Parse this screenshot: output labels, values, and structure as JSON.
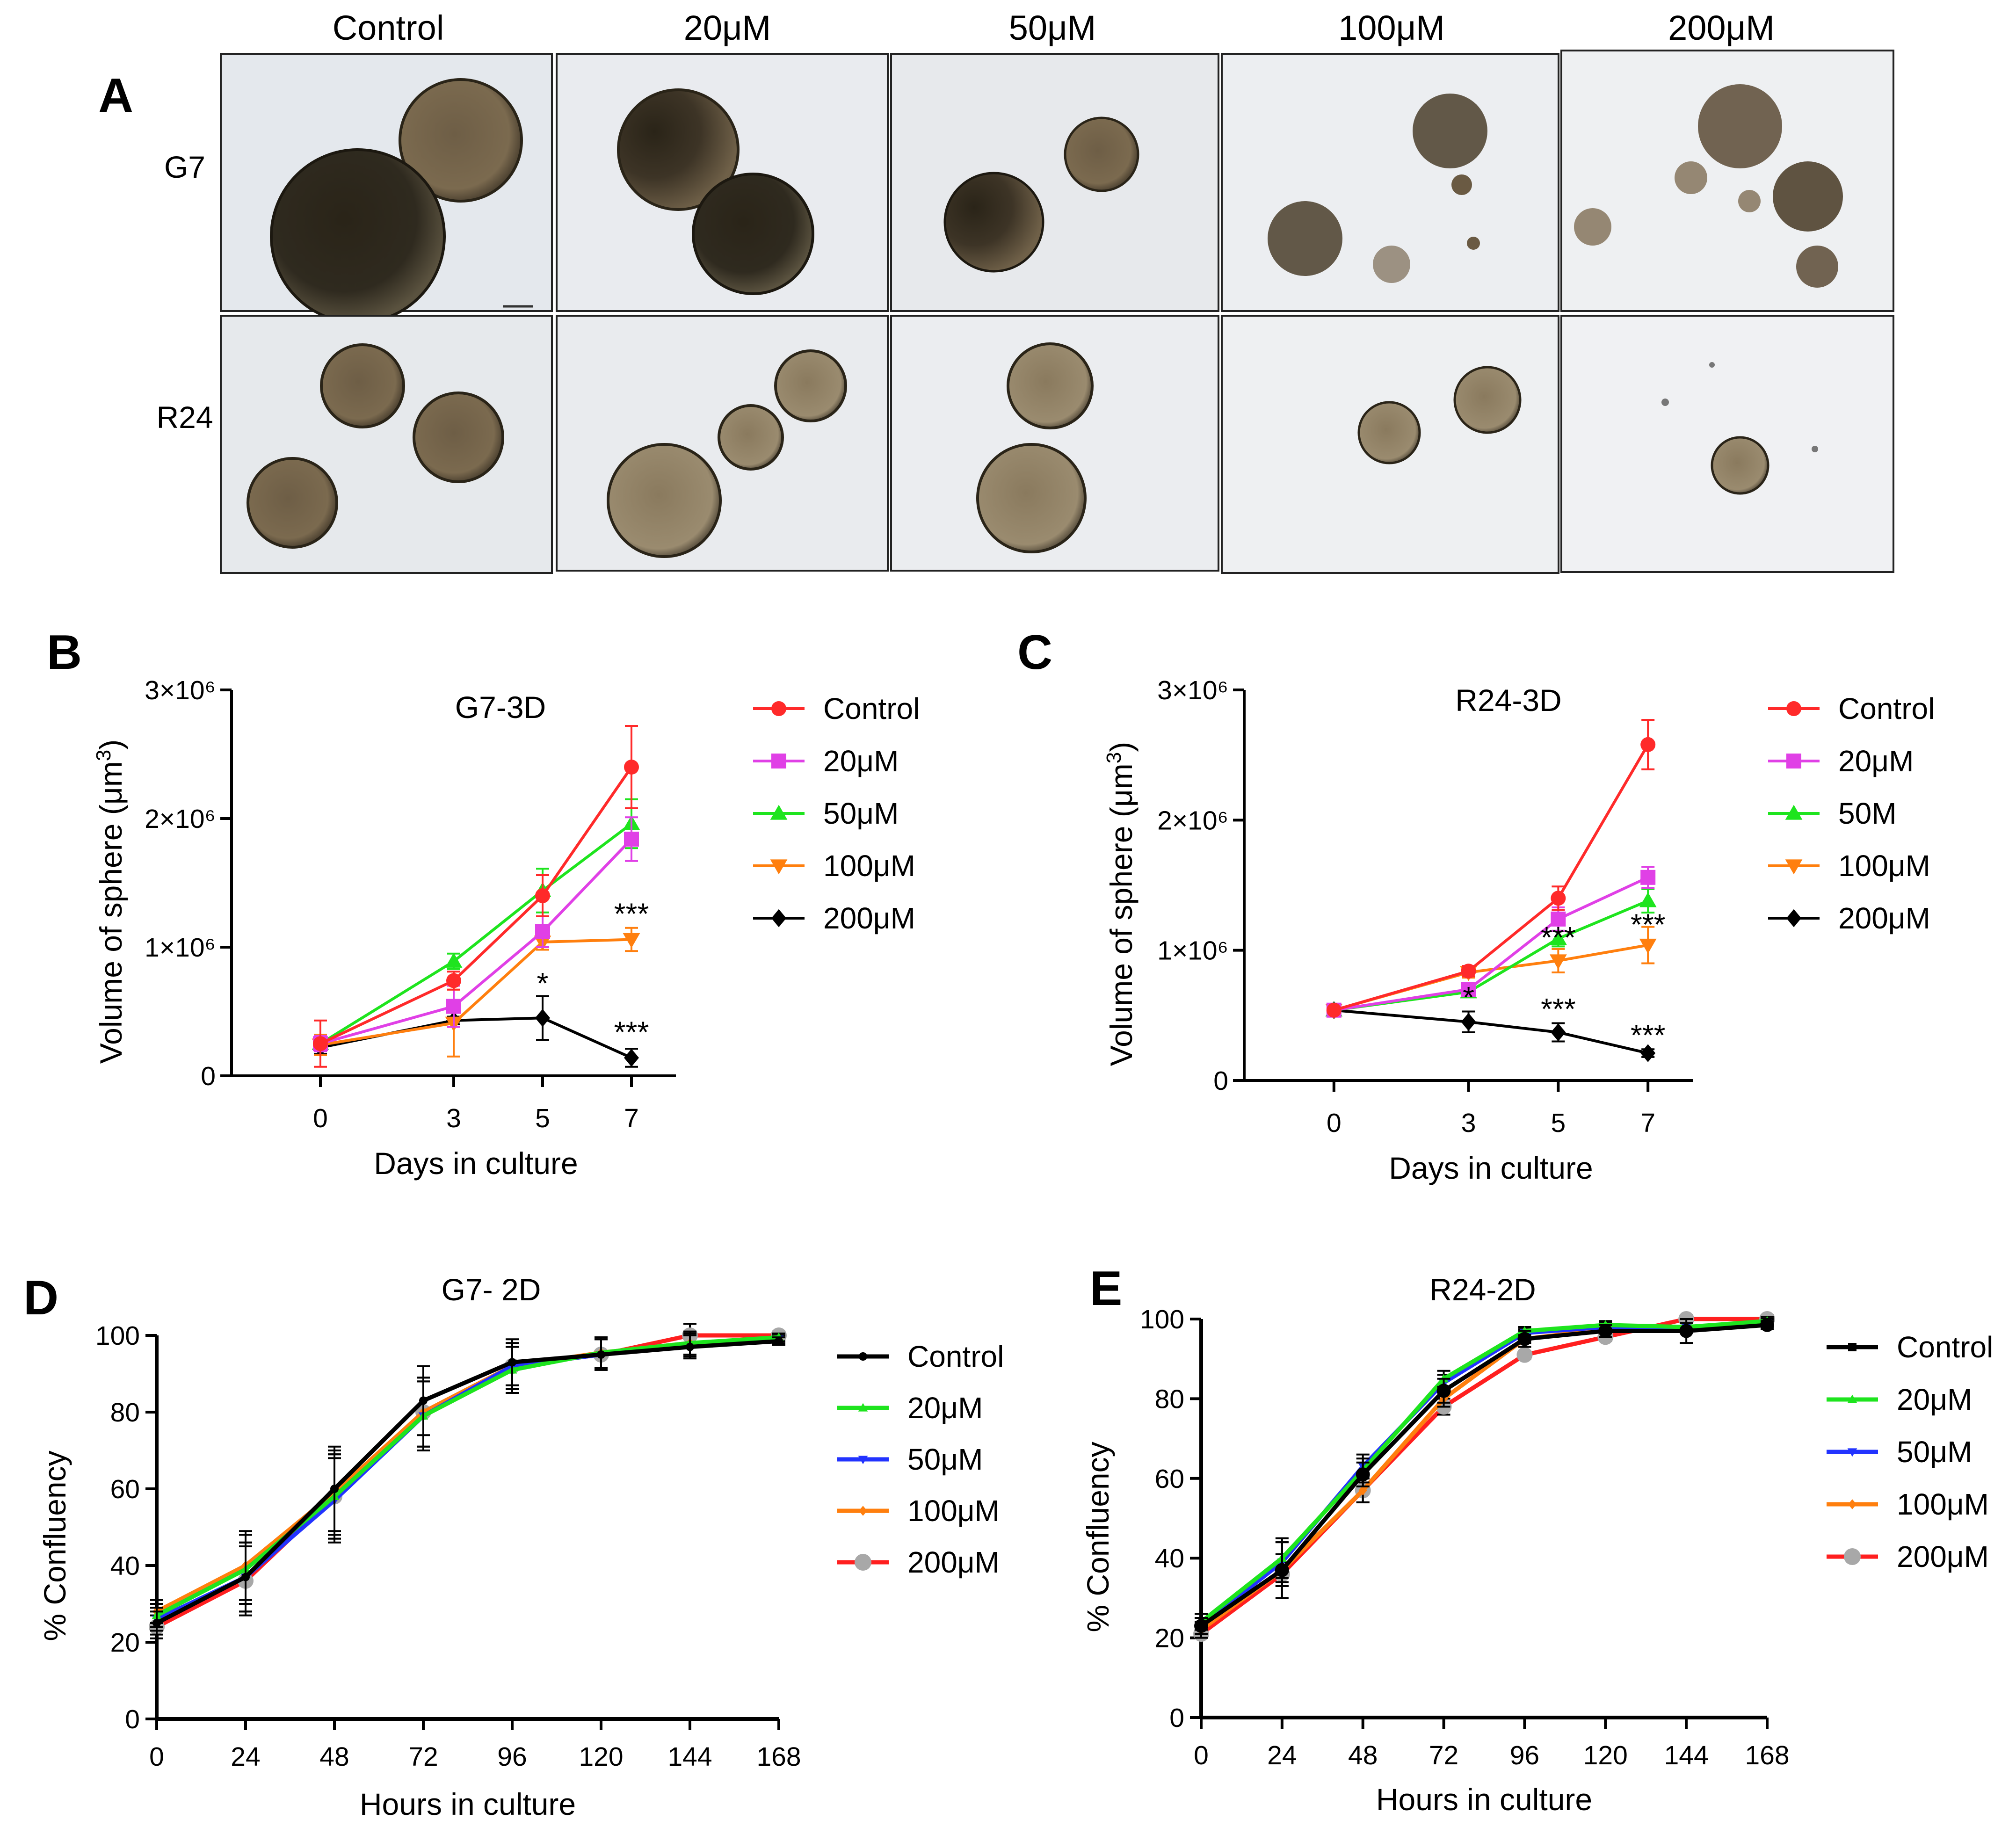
{
  "panel_a": {
    "letter": "A",
    "columns": [
      "Control",
      "20μM",
      "50μM",
      "100μM",
      "200μM"
    ],
    "rows": [
      "G7",
      "R24"
    ]
  },
  "chart_data": [
    {
      "letter": "B",
      "type": "line",
      "title": "G7-3D",
      "xlabel": "Days in culture",
      "ylabel": "Volume of sphere (μm3)",
      "y_tick_labels": [
        "0",
        "1×10⁶",
        "2×10⁶",
        "3×10⁶"
      ],
      "x": [
        0,
        3,
        5,
        7
      ],
      "xlim": [
        -2,
        9
      ],
      "ylim": [
        0,
        3000000
      ],
      "y_scale": "linear",
      "legend_position": "right",
      "series": [
        {
          "name": "Control",
          "color": "#ff2a2a",
          "marker": "circle",
          "values": [
            250000,
            740000,
            1400000,
            2400000
          ],
          "errors": [
            180000,
            70000,
            160000,
            320000
          ]
        },
        {
          "name": "20μM",
          "color": "#e040e6",
          "marker": "square",
          "values": [
            250000,
            540000,
            1120000,
            1840000
          ],
          "errors": [
            60000,
            160000,
            120000,
            170000
          ]
        },
        {
          "name": "50μM",
          "color": "#1ee41e",
          "marker": "triangle-up",
          "values": [
            250000,
            890000,
            1440000,
            1960000
          ],
          "errors": [
            40000,
            60000,
            170000,
            190000
          ]
        },
        {
          "name": "100μM",
          "color": "#ff7f0e",
          "marker": "triangle-down",
          "values": [
            240000,
            410000,
            1040000,
            1060000
          ],
          "errors": [
            80000,
            260000,
            60000,
            90000
          ]
        },
        {
          "name": "200μM",
          "color": "#000000",
          "marker": "diamond",
          "values": [
            220000,
            430000,
            450000,
            140000
          ],
          "errors": [
            50000,
            30000,
            170000,
            70000
          ]
        }
      ],
      "annotations": [
        {
          "text": "*",
          "x": 5,
          "y": 640000
        },
        {
          "text": "***",
          "x": 7,
          "y": 1180000
        },
        {
          "text": "***",
          "x": 7,
          "y": 260000
        }
      ]
    },
    {
      "letter": "C",
      "type": "line",
      "title": "R24-3D",
      "xlabel": "Days in culture",
      "ylabel": "Volume of sphere (μm3)",
      "y_tick_labels": [
        "0",
        "1×10⁶",
        "2×10⁶",
        "3×10⁶"
      ],
      "x": [
        0,
        3,
        5,
        7
      ],
      "xlim": [
        -2,
        9
      ],
      "ylim": [
        0,
        3000000
      ],
      "y_scale": "linear",
      "legend_position": "right",
      "series": [
        {
          "name": "Control",
          "color": "#ff2a2a",
          "marker": "circle",
          "values": [
            540000,
            840000,
            1400000,
            2580000
          ],
          "errors": [
            20000,
            40000,
            90000,
            190000
          ]
        },
        {
          "name": "20μM",
          "color": "#e040e6",
          "marker": "square",
          "values": [
            540000,
            700000,
            1240000,
            1560000
          ],
          "errors": [
            20000,
            40000,
            90000,
            80000
          ]
        },
        {
          "name": "50M",
          "color": "#1ee41e",
          "marker": "triangle-up",
          "values": [
            540000,
            680000,
            1090000,
            1380000
          ],
          "errors": [
            20000,
            30000,
            60000,
            90000
          ]
        },
        {
          "name": "100μM",
          "color": "#ff7f0e",
          "marker": "triangle-down",
          "values": [
            540000,
            830000,
            920000,
            1040000
          ],
          "errors": [
            20000,
            40000,
            90000,
            140000
          ]
        },
        {
          "name": "200μM",
          "color": "#000000",
          "marker": "diamond",
          "values": [
            540000,
            450000,
            370000,
            210000
          ],
          "errors": [
            20000,
            80000,
            70000,
            30000
          ]
        }
      ],
      "annotations": [
        {
          "text": "*",
          "x": 3,
          "y": 560000
        },
        {
          "text": "***",
          "x": 5,
          "y": 1020000
        },
        {
          "text": "***",
          "x": 7,
          "y": 1120000
        },
        {
          "text": "***",
          "x": 5,
          "y": 470000
        },
        {
          "text": "***",
          "x": 7,
          "y": 270000
        }
      ]
    },
    {
      "letter": "D",
      "type": "line",
      "title": "G7- 2D",
      "xlabel": "Hours in culture",
      "ylabel": "% Confluency",
      "x": [
        0,
        24,
        48,
        72,
        96,
        120,
        144,
        168
      ],
      "xlim": [
        0,
        168
      ],
      "ylim": [
        0,
        100
      ],
      "x_ticks": [
        0,
        24,
        48,
        72,
        96,
        120,
        144,
        168
      ],
      "y_ticks": [
        0,
        20,
        40,
        60,
        80,
        100
      ],
      "legend_position": "right",
      "series": [
        {
          "name": "Control",
          "color": "#000000",
          "marker": "circle-small",
          "values": [
            25,
            37,
            60,
            83,
            93,
            95,
            97,
            98.5
          ],
          "errors": [
            3,
            9,
            11,
            9,
            6,
            4,
            3,
            1
          ]
        },
        {
          "name": "20μM",
          "color": "#1ee41e",
          "marker": "triangle-small",
          "values": [
            27,
            39,
            58,
            79,
            91,
            95.5,
            98,
            99.5
          ],
          "errors": [
            3,
            9,
            11,
            9,
            6,
            4,
            3,
            1
          ]
        },
        {
          "name": "50μM",
          "color": "#2233ff",
          "marker": "triangle-down-small",
          "values": [
            26,
            37,
            57,
            79,
            92,
            95,
            97.5,
            99
          ],
          "errors": [
            3,
            9,
            11,
            9,
            6,
            4,
            3,
            1
          ]
        },
        {
          "name": "100μM",
          "color": "#ff7f0e",
          "marker": "diamond-small",
          "values": [
            28,
            40,
            59,
            80,
            92,
            95.5,
            98,
            99
          ],
          "errors": [
            3,
            9,
            11,
            9,
            6,
            4,
            3,
            1
          ]
        },
        {
          "name": "200μM",
          "color": "#ff1f1f",
          "marker": "circle-grey",
          "values": [
            24,
            36,
            58,
            80,
            92,
            95,
            100,
            100
          ],
          "errors": [
            3,
            9,
            11,
            9,
            6,
            4,
            3,
            1
          ]
        }
      ]
    },
    {
      "letter": "E",
      "type": "line",
      "title": "R24-2D",
      "xlabel": "Hours in culture",
      "ylabel": "% Confluency",
      "x": [
        0,
        24,
        48,
        72,
        96,
        120,
        144,
        168
      ],
      "xlim": [
        0,
        168
      ],
      "ylim": [
        0,
        100
      ],
      "x_ticks": [
        0,
        24,
        48,
        72,
        96,
        120,
        144,
        168
      ],
      "y_ticks": [
        0,
        20,
        40,
        60,
        80,
        100
      ],
      "legend_position": "right",
      "series": [
        {
          "name": "Control",
          "color": "#000000",
          "marker": "square-small",
          "values": [
            23,
            37,
            61,
            82,
            95,
            97,
            97,
            98.5
          ],
          "errors": [
            2,
            7,
            3,
            3,
            2,
            1.5,
            3,
            1
          ]
        },
        {
          "name": "20μM",
          "color": "#1ee41e",
          "marker": "triangle-small",
          "values": [
            24,
            40,
            62,
            85,
            97,
            98.5,
            98,
            99.5
          ],
          "errors": [
            2,
            5,
            3,
            2,
            1,
            1,
            1,
            1
          ]
        },
        {
          "name": "50μM",
          "color": "#2233ff",
          "marker": "triangle-down-small",
          "values": [
            23,
            39,
            63,
            84,
            96.5,
            98,
            98,
            99
          ],
          "errors": [
            2,
            5,
            3,
            2,
            1,
            1,
            1,
            1
          ]
        },
        {
          "name": "100μM",
          "color": "#ff7f0e",
          "marker": "diamond-small",
          "values": [
            22,
            37,
            57,
            80,
            95,
            97.5,
            98,
            99
          ],
          "errors": [
            2,
            4,
            3,
            2,
            1,
            1,
            1,
            1
          ]
        },
        {
          "name": "200μM",
          "color": "#ff1f1f",
          "marker": "circle-grey",
          "values": [
            21,
            36,
            57,
            78,
            91,
            95.5,
            100,
            100
          ],
          "errors": [
            1,
            3,
            3,
            2,
            1,
            1,
            1,
            1
          ]
        }
      ]
    }
  ]
}
